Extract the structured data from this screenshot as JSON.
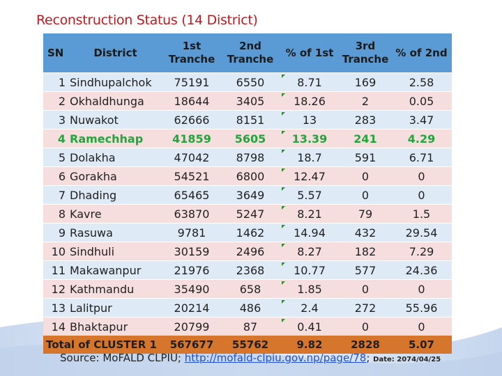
{
  "title": "Reconstruction Status (14 District)",
  "table": {
    "headers": {
      "sn": "SN",
      "district": "District",
      "tranche1": "1st Tranche",
      "tranche2": "2nd Tranche",
      "pct1": "% of 1st",
      "tranche3": "3rd Tranche",
      "pct2": "% of 2nd"
    },
    "rows": [
      {
        "sn": "1",
        "district": "Sindhupalchok",
        "t1": "75191",
        "t2": "6550",
        "pct1": "8.71",
        "t3": "169",
        "pct2": "2.58"
      },
      {
        "sn": "2",
        "district": "Okhaldhunga",
        "t1": "18644",
        "t2": "3405",
        "pct1": "18.26",
        "t3": "2",
        "pct2": "0.05"
      },
      {
        "sn": "3",
        "district": "Nuwakot",
        "t1": "62666",
        "t2": "8151",
        "pct1": "13",
        "t3": "283",
        "pct2": "3.47"
      },
      {
        "sn": "4",
        "district": "Ramechhap",
        "t1": "41859",
        "t2": "5605",
        "pct1": "13.39",
        "t3": "241",
        "pct2": "4.29"
      },
      {
        "sn": "5",
        "district": "Dolakha",
        "t1": "47042",
        "t2": "8798",
        "pct1": "18.7",
        "t3": "591",
        "pct2": "6.71"
      },
      {
        "sn": "6",
        "district": "Gorakha",
        "t1": "54521",
        "t2": "6800",
        "pct1": "12.47",
        "t3": "0",
        "pct2": "0"
      },
      {
        "sn": "7",
        "district": "Dhading",
        "t1": "65465",
        "t2": "3649",
        "pct1": "5.57",
        "t3": "0",
        "pct2": "0"
      },
      {
        "sn": "8",
        "district": "Kavre",
        "t1": "63870",
        "t2": "5247",
        "pct1": "8.21",
        "t3": "79",
        "pct2": "1.5"
      },
      {
        "sn": "9",
        "district": "Rasuwa",
        "t1": "9781",
        "t2": "1462",
        "pct1": "14.94",
        "t3": "432",
        "pct2": "29.54"
      },
      {
        "sn": "10",
        "district": "Sindhuli",
        "t1": "30159",
        "t2": "2496",
        "pct1": "8.27",
        "t3": "182",
        "pct2": "7.29"
      },
      {
        "sn": "11",
        "district": "Makawanpur",
        "t1": "21976",
        "t2": "2368",
        "pct1": "10.77",
        "t3": "577",
        "pct2": "24.36"
      },
      {
        "sn": "12",
        "district": "Kathmandu",
        "t1": "35490",
        "t2": "658",
        "pct1": "1.85",
        "t3": "0",
        "pct2": "0"
      },
      {
        "sn": "13",
        "district": "Lalitpur",
        "t1": "20214",
        "t2": "486",
        "pct1": "2.4",
        "t3": "272",
        "pct2": "55.96"
      },
      {
        "sn": "14",
        "district": "Bhaktapur",
        "t1": "20799",
        "t2": "87",
        "pct1": "0.41",
        "t3": "0",
        "pct2": "0"
      }
    ],
    "total": {
      "label": "Total of CLUSTER 1",
      "t1": "567677",
      "t2": "55762",
      "pct1": "9.82",
      "t3": "2828",
      "pct2": "5.07"
    },
    "highlight_row": "4",
    "colors": {
      "header": "#5b9bd5",
      "row_blue": "#deeaf6",
      "row_pink": "#f7dede",
      "total": "#d6752c",
      "highlight_text": "#20a63a",
      "title": "#c0191f"
    }
  },
  "footer": {
    "source_prefix": "Source: MoFALD CLPIU; ",
    "source_link": "http://mofald-clpiu.gov.np/page/78",
    "separator": ";",
    "date": "Date: 2074/04/25"
  }
}
